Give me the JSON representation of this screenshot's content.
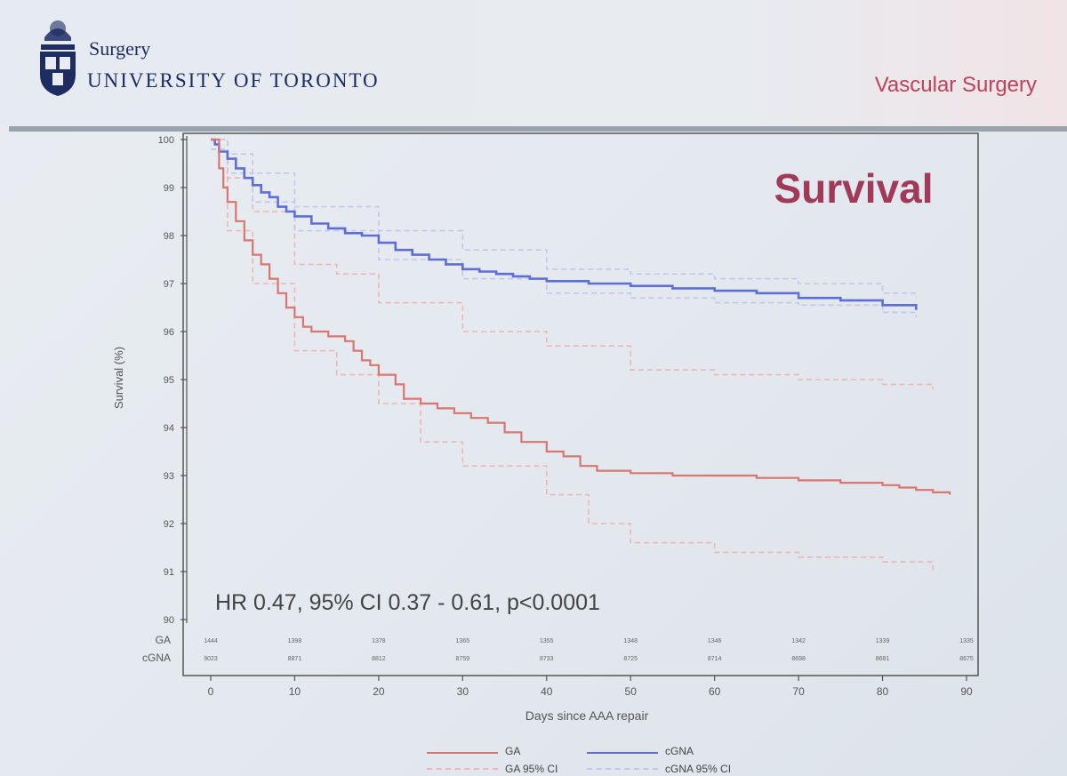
{
  "header": {
    "surgery": "Surgery",
    "university": "UNIVERSITY OF TORONTO",
    "department": "Vascular Surgery"
  },
  "colors": {
    "ga": "#d9766f",
    "cgna": "#5d6fd6",
    "ga_ci": "#ebb6b8",
    "cgna_ci": "#c3c6ea",
    "brand": "#1d2c61",
    "title": "#a03a58"
  },
  "chart_data": {
    "type": "line",
    "title": "Survival",
    "xlabel": "Days since AAA repair",
    "ylabel": "Survival (%)",
    "xlim": [
      0,
      90
    ],
    "ylim": [
      90,
      100
    ],
    "x_ticks": [
      0,
      10,
      20,
      30,
      40,
      50,
      60,
      70,
      80,
      90
    ],
    "y_ticks": [
      90,
      91,
      92,
      93,
      94,
      95,
      96,
      97,
      98,
      99,
      100
    ],
    "annotation": "HR 0.47, 95% CI 0.37 - 0.61, p<0.0001",
    "series": [
      {
        "name": "GA",
        "x": [
          0,
          1,
          1.5,
          2,
          3,
          4,
          5,
          6,
          7,
          8,
          9,
          10,
          11,
          12,
          14,
          15,
          16,
          17,
          18,
          19,
          20,
          22,
          23,
          25,
          27,
          29,
          31,
          33,
          35,
          37,
          40,
          42,
          44,
          46,
          50,
          55,
          60,
          65,
          70,
          75,
          80,
          82,
          84,
          86,
          88
        ],
        "y": [
          100,
          99.4,
          99.0,
          98.7,
          98.3,
          97.9,
          97.6,
          97.4,
          97.1,
          96.8,
          96.5,
          96.3,
          96.1,
          96.0,
          95.9,
          95.9,
          95.8,
          95.6,
          95.4,
          95.3,
          95.1,
          94.9,
          94.6,
          94.5,
          94.4,
          94.3,
          94.2,
          94.1,
          93.9,
          93.7,
          93.5,
          93.4,
          93.2,
          93.1,
          93.05,
          93.0,
          93.0,
          92.95,
          92.9,
          92.85,
          92.8,
          92.75,
          92.7,
          92.65,
          92.6
        ]
      },
      {
        "name": "cGNA",
        "x": [
          0,
          0.5,
          1,
          2,
          3,
          4,
          5,
          6,
          7,
          8,
          9,
          10,
          12,
          14,
          16,
          18,
          20,
          22,
          24,
          26,
          28,
          30,
          32,
          34,
          36,
          38,
          40,
          45,
          50,
          55,
          60,
          65,
          70,
          75,
          80,
          84
        ],
        "y": [
          100,
          99.9,
          99.75,
          99.6,
          99.4,
          99.2,
          99.05,
          98.9,
          98.8,
          98.6,
          98.5,
          98.4,
          98.25,
          98.15,
          98.05,
          98.0,
          97.85,
          97.7,
          97.6,
          97.5,
          97.4,
          97.3,
          97.25,
          97.2,
          97.15,
          97.1,
          97.05,
          97.0,
          96.95,
          96.9,
          96.85,
          96.8,
          96.7,
          96.65,
          96.55,
          96.45
        ]
      },
      {
        "name": "GA 95% CI (upper)",
        "x": [
          0,
          2,
          5,
          10,
          15,
          20,
          30,
          40,
          50,
          60,
          70,
          80,
          86
        ],
        "y": [
          100,
          99.2,
          98.5,
          97.4,
          97.2,
          96.6,
          96.0,
          95.7,
          95.2,
          95.1,
          95.0,
          94.9,
          94.8
        ]
      },
      {
        "name": "GA 95% CI (lower)",
        "x": [
          0,
          2,
          5,
          10,
          15,
          20,
          25,
          30,
          40,
          45,
          50,
          60,
          70,
          80,
          86
        ],
        "y": [
          99.8,
          98.1,
          97.0,
          95.6,
          95.1,
          94.5,
          93.7,
          93.2,
          92.6,
          92.0,
          91.6,
          91.4,
          91.3,
          91.2,
          91.0
        ]
      },
      {
        "name": "cGNA 95% CI (upper)",
        "x": [
          0,
          2,
          5,
          10,
          20,
          30,
          40,
          50,
          60,
          70,
          80,
          84
        ],
        "y": [
          100,
          99.7,
          99.3,
          98.6,
          98.1,
          97.7,
          97.3,
          97.2,
          97.1,
          97.0,
          96.8,
          96.7
        ]
      },
      {
        "name": "cGNA 95% CI (lower)",
        "x": [
          0,
          2,
          5,
          10,
          20,
          30,
          40,
          50,
          60,
          70,
          80,
          84
        ],
        "y": [
          99.8,
          99.3,
          98.7,
          98.1,
          97.5,
          97.1,
          96.8,
          96.7,
          96.6,
          96.55,
          96.4,
          96.3
        ]
      }
    ],
    "risk_table": {
      "x": [
        0,
        10,
        20,
        30,
        40,
        50,
        60,
        70,
        80,
        90
      ],
      "rows": [
        {
          "label": "GA",
          "values": [
            "1444",
            "1398",
            "1378",
            "1365",
            "1355",
            "1348",
            "1346",
            "1342",
            "1339",
            "1335"
          ]
        },
        {
          "label": "cGNA",
          "values": [
            "9023",
            "8871",
            "8812",
            "8759",
            "8733",
            "8725",
            "8714",
            "8698",
            "8681",
            "8675"
          ]
        }
      ]
    },
    "legend": [
      {
        "label": "GA",
        "style": "solid",
        "color": "#d9766f"
      },
      {
        "label": "cGNA",
        "style": "solid",
        "color": "#5d6fd6"
      },
      {
        "label": "GA 95% CI",
        "style": "dashed",
        "color": "#ebb6b8"
      },
      {
        "label": "cGNA 95% CI",
        "style": "dashed",
        "color": "#c3c6ea"
      }
    ]
  }
}
